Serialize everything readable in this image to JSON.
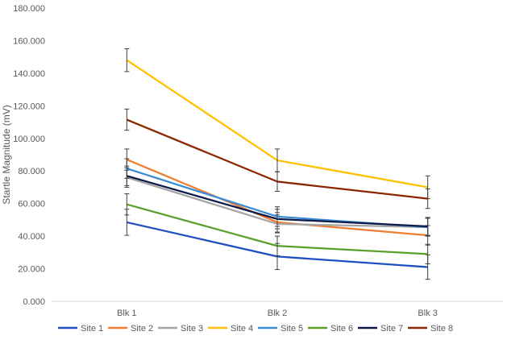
{
  "chart_data": {
    "type": "line",
    "title": "",
    "xlabel": "",
    "ylabel": "Startle Magnitude (mV)",
    "categories": [
      "Blk 1",
      "Blk 2",
      "Blk 3"
    ],
    "ylim": [
      0,
      180
    ],
    "yticks": [
      "0.000",
      "20.000",
      "40.000",
      "60.000",
      "80.000",
      "100.000",
      "120.000",
      "140.000",
      "160.000",
      "180.000"
    ],
    "ytick_values": [
      0,
      20,
      40,
      60,
      80,
      100,
      120,
      140,
      160,
      180
    ],
    "grid": false,
    "legend_position": "bottom",
    "error_bars": true,
    "series": [
      {
        "name": "Site 1",
        "color": "#1f4fbf",
        "values": [
          48.5,
          27.5,
          21.0
        ],
        "errors": [
          8.0,
          8.0,
          7.5
        ]
      },
      {
        "name": "Site 2",
        "color": "#ed7d31",
        "values": [
          87.0,
          48.5,
          40.5
        ],
        "errors": [
          6.5,
          6.0,
          6.0
        ]
      },
      {
        "name": "Site 3",
        "color": "#a5a5a5",
        "values": [
          76.0,
          47.5,
          45.5
        ],
        "errors": [
          6.0,
          5.5,
          5.5
        ]
      },
      {
        "name": "Site 4",
        "color": "#ffc000",
        "values": [
          148.0,
          86.5,
          70.0
        ],
        "errors": [
          7.0,
          7.0,
          7.0
        ]
      },
      {
        "name": "Site 5",
        "color": "#3a8bd6",
        "values": [
          81.5,
          52.0,
          45.5
        ],
        "errors": [
          6.0,
          6.0,
          5.5
        ]
      },
      {
        "name": "Site 6",
        "color": "#5aa02c",
        "values": [
          59.5,
          34.0,
          29.0
        ],
        "errors": [
          6.5,
          6.0,
          6.0
        ]
      },
      {
        "name": "Site 7",
        "color": "#0d1b4a",
        "values": [
          77.0,
          50.5,
          46.0
        ],
        "errors": [
          6.0,
          6.0,
          5.5
        ]
      },
      {
        "name": "Site 8",
        "color": "#8b2500",
        "values": [
          111.5,
          73.5,
          63.0
        ],
        "errors": [
          6.5,
          6.0,
          6.0
        ]
      }
    ]
  }
}
